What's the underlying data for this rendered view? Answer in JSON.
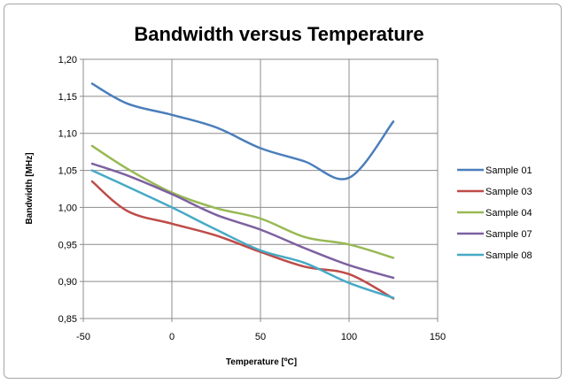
{
  "chart_data": {
    "type": "line",
    "title": "Bandwidth versus Temperature",
    "xlabel": "Temperature [ºC]",
    "ylabel": "Bandwidth [MHz]",
    "xlim": [
      -50,
      150
    ],
    "ylim": [
      0.85,
      1.2
    ],
    "xticks": [
      "-50",
      "0",
      "50",
      "100",
      "150"
    ],
    "yticks": [
      "0,85",
      "0,90",
      "0,95",
      "1,00",
      "1,05",
      "1,10",
      "1,15",
      "1,20"
    ],
    "grid": "horizontal",
    "legend_position": "right",
    "series": [
      {
        "name": "Sample 01",
        "color": "#4a7ebb",
        "x": [
          -45,
          -25,
          0,
          25,
          50,
          75,
          100,
          125
        ],
        "y": [
          1.167,
          1.14,
          1.125,
          1.108,
          1.08,
          1.062,
          1.04,
          1.116
        ]
      },
      {
        "name": "Sample 03",
        "color": "#be4b48",
        "x": [
          -45,
          -25,
          0,
          25,
          50,
          75,
          100,
          125
        ],
        "y": [
          1.035,
          0.995,
          0.978,
          0.962,
          0.94,
          0.92,
          0.91,
          0.877
        ]
      },
      {
        "name": "Sample 04",
        "color": "#98b954",
        "x": [
          -45,
          -25,
          0,
          25,
          50,
          75,
          100,
          125
        ],
        "y": [
          1.083,
          1.052,
          1.02,
          0.999,
          0.985,
          0.96,
          0.95,
          0.932
        ]
      },
      {
        "name": "Sample 07",
        "color": "#7d60a0",
        "x": [
          -45,
          -25,
          0,
          25,
          50,
          75,
          100,
          125
        ],
        "y": [
          1.059,
          1.043,
          1.018,
          0.99,
          0.97,
          0.945,
          0.922,
          0.905
        ]
      },
      {
        "name": "Sample 08",
        "color": "#46aac5",
        "x": [
          -45,
          -25,
          0,
          25,
          50,
          75,
          100,
          125
        ],
        "y": [
          1.05,
          1.028,
          1.0,
          0.97,
          0.942,
          0.925,
          0.898,
          0.878
        ]
      }
    ]
  }
}
